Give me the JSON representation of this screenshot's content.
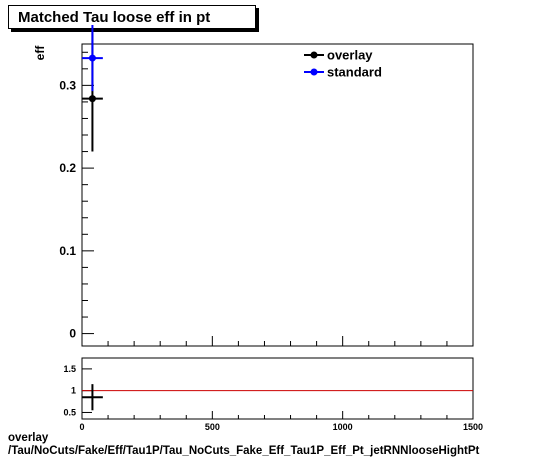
{
  "title": "Matched Tau loose eff in pt",
  "footer": {
    "line1": "overlay",
    "line2": "/Tau/NoCuts/Fake/Eff/Tau1P/Tau_NoCuts_Fake_Eff_Tau1P_Eff_Pt_jetRNNlooseHightPt"
  },
  "colors": {
    "overlay": "#000000",
    "standard": "#0000ff",
    "ratio_line": "#cc0000"
  },
  "chart_data": [
    {
      "type": "scatter",
      "title": "Matched Tau loose eff in pt",
      "ylabel": "eff",
      "xlim": [
        0,
        1500
      ],
      "ylim": [
        -0.015,
        0.35
      ],
      "yticks": [
        0,
        0.1,
        0.2,
        0.3
      ],
      "ytick_labels": [
        "0",
        "0.1",
        "0.2",
        "0.3"
      ],
      "legend_position": "top-right",
      "series": [
        {
          "name": "overlay",
          "color": "#000000",
          "points": [
            {
              "x": 40,
              "y": 0.284,
              "xerr": 40,
              "yerr_low": 0.064,
              "yerr_high": 0.08
            }
          ]
        },
        {
          "name": "standard",
          "color": "#0000ff",
          "points": [
            {
              "x": 40,
              "y": 0.333,
              "xerr": 40,
              "yerr_low": 0.04,
              "yerr_high": 0.04
            }
          ]
        }
      ]
    },
    {
      "type": "line",
      "xlim": [
        0,
        1500
      ],
      "ylim": [
        0.35,
        1.75
      ],
      "xticks": [
        0,
        500,
        1000,
        1500
      ],
      "xtick_labels": [
        "0",
        "500",
        "1000",
        "1500"
      ],
      "yticks": [
        0.5,
        1,
        1.5
      ],
      "ytick_labels": [
        "0.5",
        "1",
        "1.5"
      ],
      "reference_line": 1,
      "points": [
        {
          "x": 40,
          "y": 0.85,
          "xerr": 40,
          "yerr_low": 0.3,
          "yerr_high": 0.3
        }
      ]
    }
  ]
}
